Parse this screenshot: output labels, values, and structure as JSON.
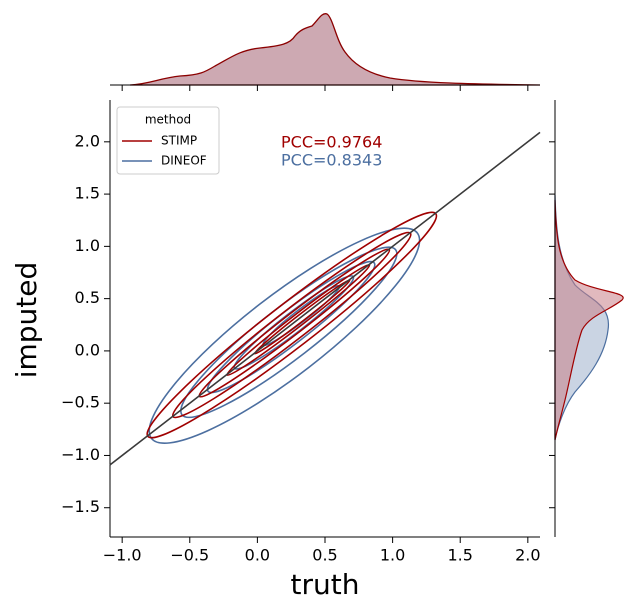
{
  "chart_data": {
    "type": "kde",
    "x_label": "truth",
    "y_label": "imputed",
    "xlim": [
      -1.09,
      2.09
    ],
    "ylim": [
      -1.78,
      2.4
    ],
    "xticks": [
      {
        "value": -1,
        "label": "−1.0"
      },
      {
        "value": -0.5,
        "label": "−0.5"
      },
      {
        "value": 0,
        "label": "0.0"
      },
      0.5,
      {
        "value": 1,
        "label": "1.0"
      },
      1.5,
      {
        "value": 2,
        "label": "2.0"
      }
    ],
    "yticks": [
      {
        "value": -1.5,
        "label": "−1.5"
      },
      {
        "value": -1,
        "label": "−1.0"
      },
      {
        "value": -0.5,
        "label": "−0.5"
      },
      {
        "value": 0,
        "label": "0.0"
      },
      0.5,
      {
        "value": 1,
        "label": "1.0"
      },
      1.5,
      {
        "value": 2,
        "label": "2.0"
      }
    ],
    "legend_title": "method",
    "legend_loc": "upper left",
    "identity_line": true,
    "series": [
      {
        "name": "STIMP",
        "color": "#a00000",
        "annotation": "PCC=0.9764"
      },
      {
        "name": "DINEOF",
        "color": "#4c6fa0",
        "annotation": "PCC=0.8343"
      }
    ]
  }
}
